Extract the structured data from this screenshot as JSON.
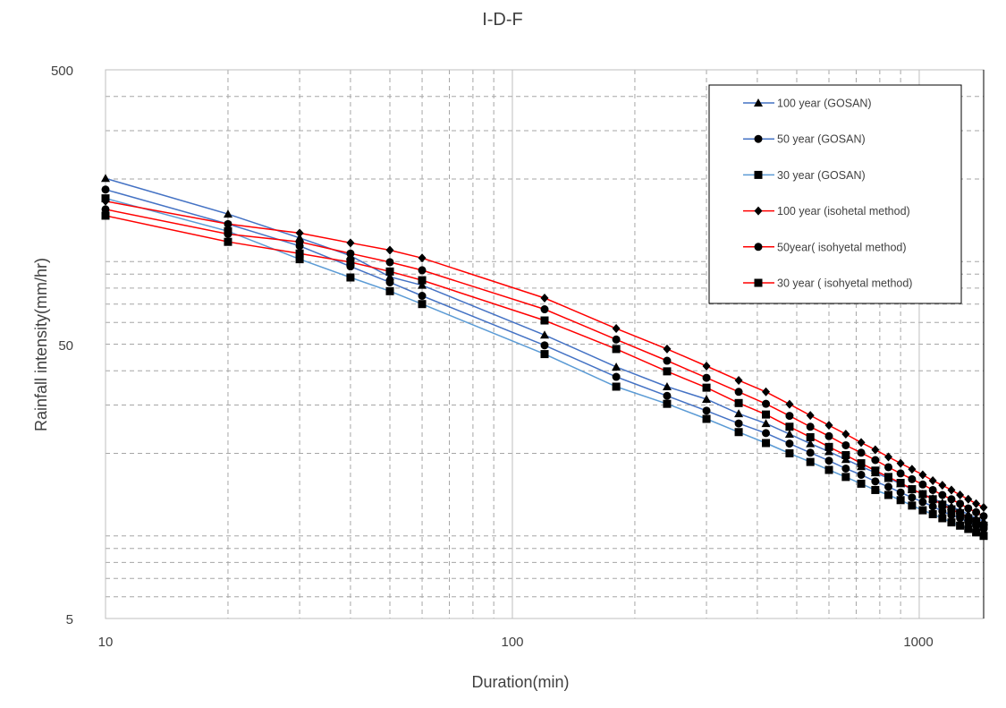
{
  "chart_data": {
    "type": "line",
    "title": "I-D-F",
    "xlabel": "Duration(min)",
    "ylabel": "Rainfall intensity(mm/hr)",
    "x_scale": "log",
    "y_scale": "log",
    "xlim": [
      10,
      1440
    ],
    "ylim": [
      5,
      500
    ],
    "x_ticks": [
      "10",
      "100",
      "1000"
    ],
    "y_ticks": [
      "500",
      "50",
      "5"
    ],
    "grid": true,
    "legend_position": "top-right",
    "x": [
      10,
      20,
      30,
      40,
      50,
      60,
      120,
      180,
      240,
      300,
      360,
      420,
      480,
      540,
      600,
      660,
      720,
      780,
      840,
      900,
      960,
      1020,
      1080,
      1140,
      1200,
      1260,
      1320,
      1380,
      1440
    ],
    "series": [
      {
        "name": "100 year (GOSAN)",
        "color": "#4472C4",
        "marker": "triangle",
        "values": [
          201,
          149,
          122,
          105,
          88,
          82,
          54,
          41.3,
          35,
          31.5,
          27.9,
          25.7,
          23.5,
          21.7,
          20.3,
          19.0,
          17.9,
          17.0,
          16.2,
          15.5,
          14.8,
          14.2,
          13.7,
          13.2,
          12.8,
          12.4,
          12.0,
          11.6,
          11.3
        ]
      },
      {
        "name": "50 year (GOSAN)",
        "color": "#4472C4",
        "marker": "circle",
        "values": [
          183,
          137,
          114,
          96,
          84,
          75,
          49.5,
          38,
          32.4,
          28.6,
          25.7,
          23.7,
          21.7,
          20.1,
          18.8,
          17.6,
          16.7,
          15.8,
          15.1,
          14.4,
          13.8,
          13.3,
          12.8,
          12.3,
          11.9,
          11.6,
          11.2,
          10.9,
          10.6
        ]
      },
      {
        "name": "30 year (GOSAN)",
        "color": "#5B9BD5",
        "marker": "square",
        "values": [
          170,
          129,
          102,
          87.5,
          78,
          70,
          46,
          35,
          30.3,
          26.7,
          23.9,
          21.8,
          20.0,
          18.6,
          17.4,
          16.4,
          15.5,
          14.7,
          14.1,
          13.5,
          12.9,
          12.4,
          12.0,
          11.6,
          11.2,
          10.9,
          10.6,
          10.3,
          10.0
        ]
      },
      {
        "name": "100 year (isohetal method)",
        "color": "#FF0000",
        "marker": "diamond",
        "values": [
          166,
          137,
          127,
          117,
          110,
          103,
          73.6,
          57,
          48,
          41.6,
          36.9,
          33.5,
          30.2,
          27.5,
          25.3,
          23.5,
          21.9,
          20.6,
          19.4,
          18.4,
          17.5,
          16.7,
          15.9,
          15.3,
          14.7,
          14.1,
          13.6,
          13.1,
          12.7
        ]
      },
      {
        "name": "50year( isohyetal method)",
        "color": "#FF0000",
        "marker": "circle",
        "values": [
          155,
          126,
          118,
          107,
          99.5,
          93,
          67,
          52,
          43.5,
          37.7,
          33.5,
          30.3,
          27.4,
          25.0,
          23.1,
          21.4,
          20.1,
          18.9,
          17.8,
          16.9,
          16.1,
          15.4,
          14.7,
          14.1,
          13.6,
          13.1,
          12.6,
          12.2,
          11.8
        ]
      },
      {
        "name": "30 year ( isohyetal method)",
        "color": "#FF0000",
        "marker": "square",
        "values": [
          147,
          118,
          107,
          99.5,
          92,
          85.5,
          61,
          48,
          39.8,
          34.7,
          30.5,
          27.7,
          25.0,
          22.9,
          21.1,
          19.7,
          18.4,
          17.3,
          16.4,
          15.6,
          14.8,
          14.2,
          13.6,
          13.0,
          12.5,
          12.1,
          11.6,
          11.3,
          10.9
        ]
      }
    ]
  }
}
